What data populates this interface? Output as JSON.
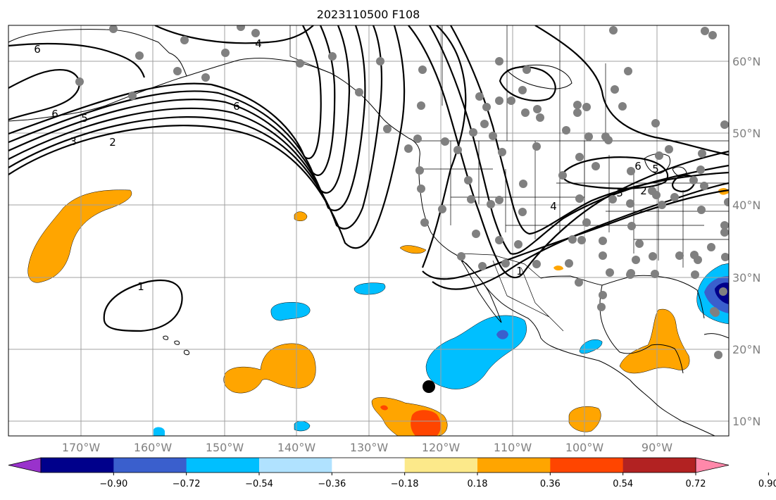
{
  "title": "2023110500 F108",
  "lon_labels": [
    "170°W",
    "160°W",
    "150°W",
    "140°W",
    "130°W",
    "120°W",
    "110°W",
    "100°W",
    "90°W"
  ],
  "lat_labels": [
    "60°N",
    "50°N",
    "40°N",
    "30°N",
    "20°N",
    "10°N"
  ],
  "colorbar": {
    "colors": [
      "#9932cc",
      "#00008b",
      "#3a5fcd",
      "#00bfff",
      "#b0e2ff",
      "#ffffff",
      "#fce98a",
      "#ffa500",
      "#ff4500",
      "#b22222",
      "#ff88aa"
    ],
    "labels": [
      "−0.90",
      "−0.72",
      "−0.54",
      "−0.36",
      "−0.18",
      "0.18",
      "0.36",
      "0.54",
      "0.72",
      "0.90"
    ]
  },
  "contour_labels": [
    "6",
    "4",
    "6",
    "5",
    "3",
    "2",
    "6",
    "1",
    "6",
    "5",
    "3",
    "2",
    "4",
    "1"
  ]
}
